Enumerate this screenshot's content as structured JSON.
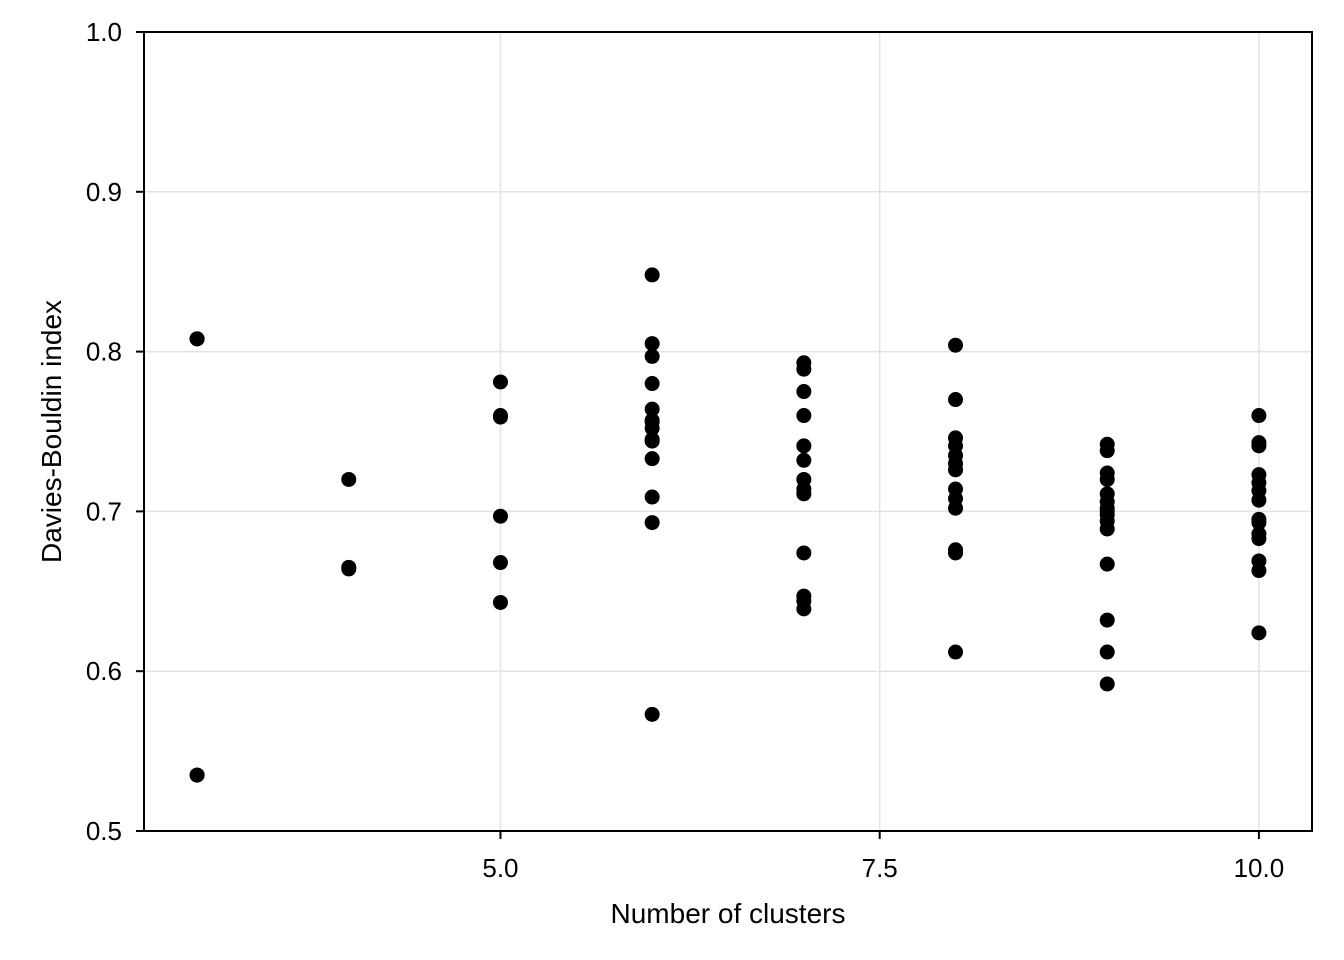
{
  "chart_data": {
    "type": "scatter",
    "title": "",
    "xlabel": "Number of clusters",
    "ylabel": "Davies-Bouldin index",
    "xlim": [
      2.65,
      10.35
    ],
    "ylim": [
      0.5,
      1.0
    ],
    "xticks": [
      5.0,
      7.5,
      10.0
    ],
    "xtick_labels": [
      "5.0",
      "7.5",
      "10.0"
    ],
    "yticks": [
      0.5,
      0.6,
      0.7,
      0.8,
      0.9,
      1.0
    ],
    "ytick_labels": [
      "0.5",
      "0.6",
      "0.7",
      "0.8",
      "0.9",
      "1.0"
    ],
    "grid": true,
    "marker_color": "#000000",
    "series": [
      {
        "x": [
          3,
          3,
          3,
          3,
          4,
          4,
          4,
          5,
          5,
          5,
          5,
          5,
          5,
          6,
          6,
          6,
          6,
          6,
          6,
          6,
          6,
          6,
          6,
          6,
          6,
          6,
          6,
          7,
          7,
          7,
          7,
          7,
          7,
          7,
          7,
          7,
          7,
          7,
          7,
          7,
          8,
          8,
          8,
          8,
          8,
          8,
          8,
          8,
          8,
          8,
          8,
          8,
          8,
          9,
          9,
          9,
          9,
          9,
          9,
          9,
          9,
          9,
          9,
          9,
          9,
          9,
          9,
          9,
          10,
          10,
          10,
          10,
          10,
          10,
          10,
          10,
          10,
          10,
          10,
          10,
          10,
          10
        ],
        "y": [
          0.808,
          0.808,
          0.535,
          0.535,
          0.72,
          0.665,
          0.664,
          0.781,
          0.76,
          0.759,
          0.697,
          0.668,
          0.643,
          0.848,
          0.805,
          0.797,
          0.78,
          0.764,
          0.757,
          0.752,
          0.744,
          0.733,
          0.709,
          0.693,
          0.573,
          0.756,
          0.745,
          0.793,
          0.789,
          0.775,
          0.76,
          0.741,
          0.732,
          0.72,
          0.714,
          0.711,
          0.674,
          0.647,
          0.644,
          0.639,
          0.804,
          0.77,
          0.746,
          0.741,
          0.735,
          0.73,
          0.726,
          0.714,
          0.708,
          0.702,
          0.676,
          0.674,
          0.612,
          0.742,
          0.738,
          0.724,
          0.72,
          0.711,
          0.706,
          0.702,
          0.698,
          0.694,
          0.689,
          0.667,
          0.632,
          0.612,
          0.592,
          0.7,
          0.76,
          0.743,
          0.741,
          0.723,
          0.718,
          0.713,
          0.707,
          0.695,
          0.693,
          0.686,
          0.683,
          0.669,
          0.663,
          0.624
        ]
      }
    ]
  }
}
